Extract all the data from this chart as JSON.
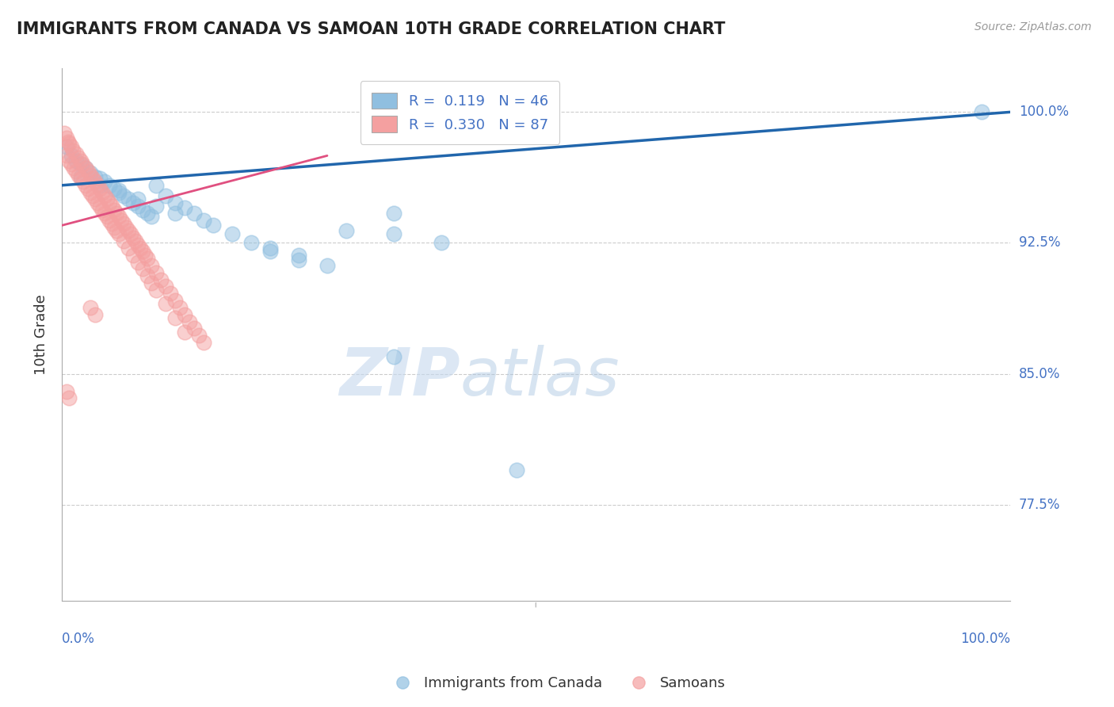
{
  "title": "IMMIGRANTS FROM CANADA VS SAMOAN 10TH GRADE CORRELATION CHART",
  "source_text": "Source: ZipAtlas.com",
  "ylabel": "10th Grade",
  "ytick_labels": [
    "100.0%",
    "92.5%",
    "85.0%",
    "77.5%"
  ],
  "ytick_values": [
    1.0,
    0.925,
    0.85,
    0.775
  ],
  "xlim": [
    0.0,
    1.0
  ],
  "ylim": [
    0.72,
    1.025
  ],
  "legend_blue_label": "R =  0.119   N = 46",
  "legend_pink_label": "R =  0.330   N = 87",
  "blue_color": "#90bfe0",
  "pink_color": "#f4a0a0",
  "trend_blue": "#2166ac",
  "trend_pink": "#e05080",
  "watermark_zip": "ZIP",
  "watermark_atlas": "atlas",
  "blue_scatter_x": [
    0.005,
    0.01,
    0.015,
    0.02,
    0.025,
    0.03,
    0.035,
    0.04,
    0.045,
    0.05,
    0.055,
    0.06,
    0.065,
    0.07,
    0.075,
    0.08,
    0.085,
    0.09,
    0.095,
    0.1,
    0.11,
    0.12,
    0.13,
    0.14,
    0.15,
    0.18,
    0.2,
    0.22,
    0.25,
    0.02,
    0.04,
    0.06,
    0.08,
    0.1,
    0.12,
    0.16,
    0.3,
    0.35,
    0.35,
    0.4,
    0.22,
    0.25,
    0.28,
    0.97,
    0.35,
    0.48
  ],
  "blue_scatter_y": [
    0.98,
    0.975,
    0.972,
    0.97,
    0.968,
    0.965,
    0.963,
    0.962,
    0.96,
    0.958,
    0.956,
    0.954,
    0.952,
    0.95,
    0.948,
    0.946,
    0.944,
    0.942,
    0.94,
    0.958,
    0.952,
    0.948,
    0.945,
    0.942,
    0.938,
    0.93,
    0.925,
    0.922,
    0.918,
    0.963,
    0.958,
    0.955,
    0.95,
    0.946,
    0.942,
    0.935,
    0.932,
    0.93,
    0.942,
    0.925,
    0.92,
    0.915,
    0.912,
    1.0,
    0.86,
    0.795
  ],
  "pink_scatter_x": [
    0.003,
    0.005,
    0.007,
    0.008,
    0.01,
    0.012,
    0.015,
    0.018,
    0.02,
    0.022,
    0.025,
    0.028,
    0.03,
    0.033,
    0.035,
    0.038,
    0.04,
    0.043,
    0.045,
    0.048,
    0.05,
    0.053,
    0.055,
    0.058,
    0.06,
    0.063,
    0.065,
    0.068,
    0.07,
    0.073,
    0.075,
    0.078,
    0.08,
    0.083,
    0.085,
    0.088,
    0.09,
    0.095,
    0.1,
    0.105,
    0.11,
    0.115,
    0.12,
    0.125,
    0.13,
    0.135,
    0.14,
    0.145,
    0.15,
    0.005,
    0.008,
    0.01,
    0.013,
    0.015,
    0.018,
    0.02,
    0.023,
    0.025,
    0.028,
    0.03,
    0.033,
    0.035,
    0.038,
    0.04,
    0.043,
    0.045,
    0.048,
    0.05,
    0.053,
    0.055,
    0.058,
    0.06,
    0.065,
    0.07,
    0.075,
    0.08,
    0.085,
    0.09,
    0.095,
    0.1,
    0.11,
    0.12,
    0.13,
    0.03,
    0.035,
    0.005,
    0.008
  ],
  "pink_scatter_y": [
    0.988,
    0.985,
    0.983,
    0.982,
    0.98,
    0.978,
    0.976,
    0.974,
    0.972,
    0.97,
    0.968,
    0.966,
    0.964,
    0.962,
    0.96,
    0.958,
    0.956,
    0.954,
    0.952,
    0.95,
    0.948,
    0.946,
    0.944,
    0.942,
    0.94,
    0.938,
    0.936,
    0.934,
    0.932,
    0.93,
    0.928,
    0.926,
    0.924,
    0.922,
    0.92,
    0.918,
    0.916,
    0.912,
    0.908,
    0.904,
    0.9,
    0.896,
    0.892,
    0.888,
    0.884,
    0.88,
    0.876,
    0.872,
    0.868,
    0.975,
    0.972,
    0.97,
    0.968,
    0.966,
    0.964,
    0.962,
    0.96,
    0.958,
    0.956,
    0.954,
    0.952,
    0.95,
    0.948,
    0.946,
    0.944,
    0.942,
    0.94,
    0.938,
    0.936,
    0.934,
    0.932,
    0.93,
    0.926,
    0.922,
    0.918,
    0.914,
    0.91,
    0.906,
    0.902,
    0.898,
    0.89,
    0.882,
    0.874,
    0.888,
    0.884,
    0.84,
    0.836
  ],
  "blue_trend_x": [
    0.0,
    1.0
  ],
  "blue_trend_y": [
    0.958,
    1.0
  ],
  "pink_trend_x": [
    0.0,
    0.28
  ],
  "pink_trend_y": [
    0.935,
    0.975
  ]
}
